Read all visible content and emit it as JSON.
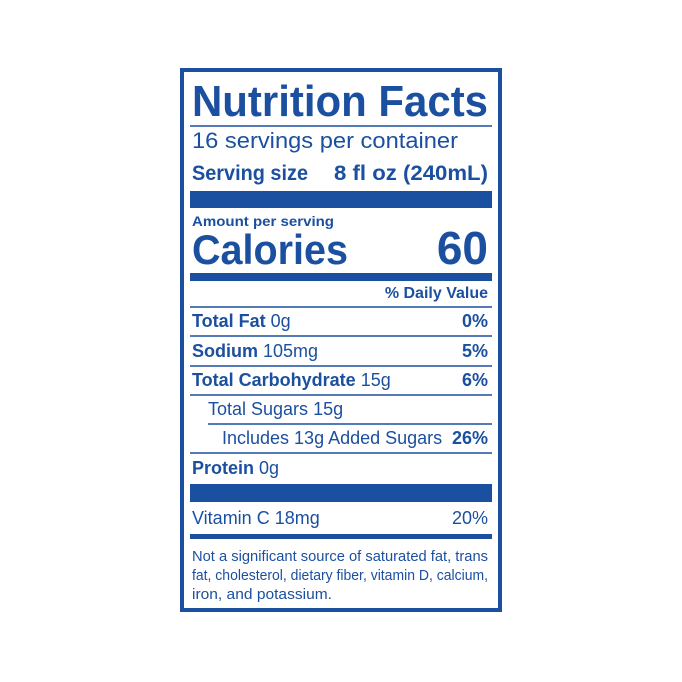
{
  "header": {
    "title": "Nutrition Facts",
    "servings": "16 servings per container",
    "serving_size_label": "Serving size",
    "serving_size": "8 fl oz (240mL)"
  },
  "calories": {
    "label": "Amount per serving",
    "name": "Calories",
    "value": 60
  },
  "daily_value_header": "% Daily Value",
  "nutrients": [
    {
      "name": "Total Fat",
      "amount": "0g",
      "dv": "0%"
    },
    {
      "name": "Sodium",
      "amount": "105mg",
      "dv": "5%"
    },
    {
      "name": "Total Carbohydrate",
      "amount": "15g",
      "dv": "6%"
    },
    {
      "name": "Total Sugars",
      "amount": "15g"
    },
    {
      "name": "Includes 13g Added Sugars",
      "dv": "26%"
    },
    {
      "name": "Protein",
      "amount": "0g"
    }
  ],
  "vitamins": [
    {
      "name": "Vitamin C",
      "amount": "18mg",
      "dv": "20%"
    }
  ],
  "footnote": [
    "Not a significant source of saturated fat, trans",
    "fat, cholesterol, dietary fiber, vitamin D, calcium,",
    "iron, and potassium."
  ]
}
